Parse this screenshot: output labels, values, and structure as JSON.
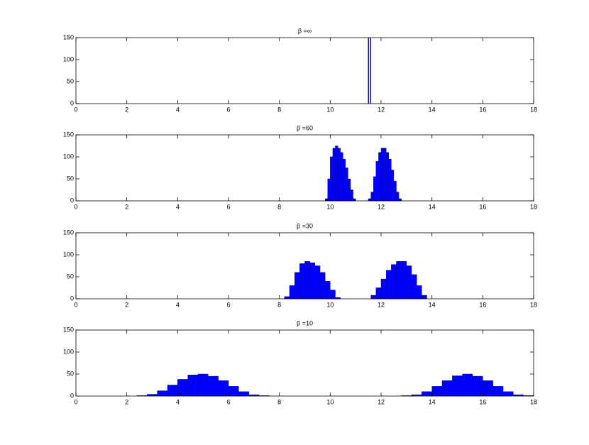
{
  "chart_data": [
    {
      "type": "histogram",
      "title": "β =∞",
      "color": "#0000ff",
      "bins": [
        11.49,
        11.52,
        11.57,
        11.6
      ],
      "values": [
        150,
        0,
        150
      ],
      "xlim": [
        0,
        18
      ],
      "xticks": [
        0,
        2,
        4,
        6,
        8,
        10,
        12,
        14,
        16,
        18
      ],
      "ylim": [
        0,
        150
      ],
      "yticks": [
        0,
        50,
        100,
        150
      ]
    },
    {
      "type": "histogram",
      "title": "β =60",
      "color": "#0000ff",
      "bins": [
        9.8,
        9.9,
        10.0,
        10.1,
        10.2,
        10.3,
        10.4,
        10.5,
        10.6,
        10.7,
        10.8,
        10.9,
        11.0,
        11.1,
        11.2,
        11.3,
        11.4,
        11.5,
        11.6,
        11.7,
        11.8,
        11.9,
        12.0,
        12.1,
        12.2,
        12.3,
        12.4,
        12.5,
        12.6,
        12.7,
        12.8,
        12.9,
        13.0
      ],
      "values": [
        5,
        50,
        100,
        120,
        125,
        120,
        110,
        95,
        75,
        50,
        25,
        5,
        0,
        0,
        0,
        0,
        0,
        5,
        20,
        55,
        90,
        110,
        120,
        120,
        110,
        95,
        70,
        45,
        20,
        5,
        0,
        0
      ],
      "xlim": [
        0,
        18
      ],
      "xticks": [
        0,
        2,
        4,
        6,
        8,
        10,
        12,
        14,
        16,
        18
      ],
      "ylim": [
        0,
        150
      ],
      "yticks": [
        0,
        50,
        100,
        150
      ]
    },
    {
      "type": "histogram",
      "title": "β =30",
      "color": "#0000ff",
      "bins": [
        8.2,
        8.4,
        8.6,
        8.8,
        9.0,
        9.2,
        9.4,
        9.6,
        9.8,
        10.0,
        10.2,
        10.4,
        10.6,
        10.8,
        11.0,
        11.2,
        11.4,
        11.6,
        11.8,
        12.0,
        12.2,
        12.4,
        12.6,
        12.8,
        13.0,
        13.2,
        13.4,
        13.6,
        13.8
      ],
      "values": [
        5,
        30,
        60,
        80,
        85,
        82,
        75,
        60,
        40,
        20,
        3,
        0,
        0,
        0,
        0,
        0,
        0,
        8,
        25,
        45,
        65,
        78,
        85,
        85,
        75,
        55,
        30,
        8
      ],
      "xlim": [
        0,
        18
      ],
      "xticks": [
        0,
        2,
        4,
        6,
        8,
        10,
        12,
        14,
        16,
        18
      ],
      "ylim": [
        0,
        150
      ],
      "yticks": [
        0,
        50,
        100,
        150
      ]
    },
    {
      "type": "histogram",
      "title": "β =10",
      "color": "#0000ff",
      "bins": [
        2.0,
        2.4,
        2.8,
        3.2,
        3.6,
        4.0,
        4.4,
        4.8,
        5.2,
        5.6,
        6.0,
        6.4,
        6.8,
        7.2,
        7.6,
        8.0,
        8.4,
        8.8,
        9.2,
        9.6,
        10.0,
        10.4,
        10.8,
        11.2,
        11.6,
        12.0,
        12.4,
        12.8,
        13.2,
        13.6,
        14.0,
        14.4,
        14.8,
        15.2,
        15.6,
        16.0,
        16.4,
        16.8,
        17.2,
        17.6,
        18.0
      ],
      "values": [
        0,
        1,
        4,
        12,
        25,
        38,
        48,
        50,
        45,
        35,
        22,
        10,
        3,
        1,
        0,
        0,
        0,
        0,
        0,
        0,
        0,
        0,
        0,
        0,
        0,
        0,
        0,
        1,
        3,
        10,
        22,
        35,
        46,
        50,
        45,
        35,
        22,
        10,
        3,
        1
      ],
      "xlim": [
        0,
        18
      ],
      "xticks": [
        0,
        2,
        4,
        6,
        8,
        10,
        12,
        14,
        16,
        18
      ],
      "ylim": [
        0,
        150
      ],
      "yticks": [
        0,
        50,
        100,
        150
      ]
    }
  ]
}
